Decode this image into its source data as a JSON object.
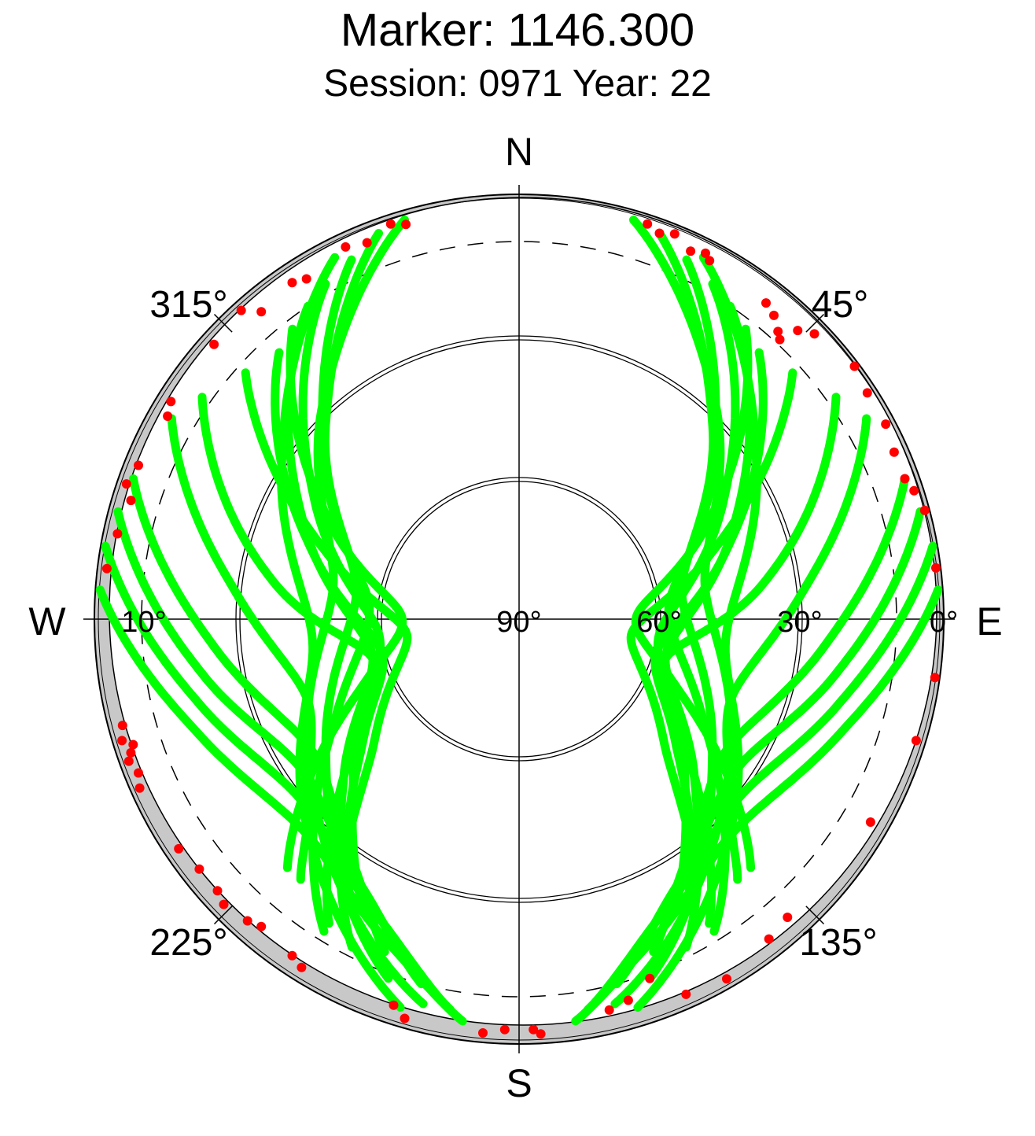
{
  "title": "Marker: 1146.300",
  "subtitle": "Session: 0971 Year: 22",
  "colors": {
    "track": "#00ff00",
    "flagged": "#ff0000",
    "mask": "#c8c8c8",
    "rings": "#000000"
  },
  "chart_data": {
    "type": "scatter",
    "projection": "polar skyplot (azimuth clockwise from north, elevation radial 0° at rim, 90° at center)",
    "title": "Marker: 1146.300",
    "subtitle": "Session: 0971 Year: 22",
    "cardinal_labels": [
      "N",
      "E",
      "S",
      "W"
    ],
    "azimuth_tick_labels": [
      "45°",
      "135°",
      "225°",
      "315°"
    ],
    "elevation_tick_labels": [
      "0°",
      "30°",
      "60°",
      "90°",
      "10°"
    ],
    "elevation_rings": [
      0,
      30,
      60
    ],
    "elevation_mask_deg": 10,
    "grid": true,
    "legend": "none",
    "series": [
      {
        "color": "green",
        "tracks": [
          {
            "az": [
              20,
              45,
              80,
              125,
              160
            ],
            "el": [
              3,
              32,
              55,
              40,
              9
            ]
          },
          {
            "az": [
              16,
              42,
              80,
              128,
              166
            ],
            "el": [
              2,
              28,
              50,
              34,
              6
            ]
          },
          {
            "az": [
              25,
              50,
              84,
              118,
              148
            ],
            "el": [
              6,
              36,
              58,
              46,
              12
            ]
          },
          {
            "az": [
              30,
              60,
              95,
              125,
              148
            ],
            "el": [
              8,
              40,
              60,
              48,
              14
            ]
          },
          {
            "az": [
              34,
              66,
              103,
              132,
              153
            ],
            "el": [
              10,
              40,
              58,
              40,
              12
            ]
          },
          {
            "az": [
              27,
              57,
              96,
              133,
              163
            ],
            "el": [
              4,
              30,
              46,
              28,
              4
            ]
          },
          {
            "az": [
              38,
              63,
              88,
              113,
              137
            ],
            "el": [
              12,
              45,
              65,
              54,
              18
            ]
          },
          {
            "az": [
              42,
              72,
              103,
              128,
              148
            ],
            "el": [
              14,
              44,
              60,
              48,
              22
            ]
          },
          {
            "az": [
              48,
              72,
              98,
              130,
              145
            ],
            "el": [
              12,
              48,
              66,
              50,
              25
            ]
          },
          {
            "az": [
              55,
              82,
              106,
              133,
              152
            ],
            "el": [
              8,
              38,
              58,
              42,
              20
            ]
          },
          {
            "az": [
              60,
              85,
              110,
              130,
              140
            ],
            "el": [
              5,
              30,
              42,
              32,
              18
            ]
          },
          {
            "az": [
              70,
              95,
              122,
              145,
              158
            ],
            "el": [
              3,
              25,
              38,
              28,
              14
            ]
          },
          {
            "az": [
              75,
              100,
              125,
              150,
              165
            ],
            "el": [
              2,
              22,
              34,
              24,
              10
            ]
          },
          {
            "az": [
              80,
              105,
              130,
              155,
              170
            ],
            "el": [
              1,
              20,
              30,
              20,
              6
            ]
          },
          {
            "az": [
              86,
              110,
              135,
              158,
              172
            ],
            "el": [
              1,
              18,
              26,
              16,
              4
            ]
          },
          {
            "az": [
              340,
              315,
              280,
              235,
              200
            ],
            "el": [
              3,
              32,
              55,
              40,
              9
            ]
          },
          {
            "az": [
              344,
              318,
              280,
              232,
              194
            ],
            "el": [
              2,
              28,
              50,
              34,
              6
            ]
          },
          {
            "az": [
              335,
              310,
              276,
              242,
              212
            ],
            "el": [
              6,
              36,
              58,
              46,
              12
            ]
          },
          {
            "az": [
              330,
              300,
              265,
              235,
              212
            ],
            "el": [
              8,
              40,
              60,
              48,
              14
            ]
          },
          {
            "az": [
              326,
              294,
              257,
              228,
              207
            ],
            "el": [
              10,
              40,
              58,
              40,
              12
            ]
          },
          {
            "az": [
              333,
              303,
              264,
              227,
              197
            ],
            "el": [
              4,
              30,
              46,
              28,
              4
            ]
          },
          {
            "az": [
              322,
              297,
              272,
              247,
              223
            ],
            "el": [
              12,
              45,
              65,
              54,
              18
            ]
          },
          {
            "az": [
              318,
              288,
              257,
              232,
              212
            ],
            "el": [
              14,
              44,
              60,
              48,
              22
            ]
          },
          {
            "az": [
              312,
              288,
              262,
              230,
              215
            ],
            "el": [
              12,
              48,
              66,
              50,
              25
            ]
          },
          {
            "az": [
              305,
              278,
              254,
              227,
              208
            ],
            "el": [
              8,
              38,
              58,
              42,
              20
            ]
          },
          {
            "az": [
              300,
              275,
              250,
              230,
              220
            ],
            "el": [
              5,
              30,
              42,
              32,
              18
            ]
          },
          {
            "az": [
              290,
              265,
              238,
              215,
              202
            ],
            "el": [
              3,
              25,
              38,
              28,
              14
            ]
          },
          {
            "az": [
              285,
              260,
              235,
              210,
              195
            ],
            "el": [
              2,
              22,
              34,
              24,
              10
            ]
          },
          {
            "az": [
              280,
              255,
              230,
              205,
              190
            ],
            "el": [
              1,
              20,
              30,
              20,
              6
            ]
          },
          {
            "az": [
              274,
              250,
              225,
              202,
              188
            ],
            "el": [
              1,
              18,
              26,
              16,
              4
            ]
          }
        ]
      },
      {
        "color": "red",
        "note": "observations below the elevation mask",
        "points": [
          {
            "az": 18,
            "el": 2
          },
          {
            "az": 20,
            "el": 3
          },
          {
            "az": 22,
            "el": 2
          },
          {
            "az": 25,
            "el": 4
          },
          {
            "az": 27,
            "el": 3
          },
          {
            "az": 28,
            "el": 4
          },
          {
            "az": 38,
            "el": 5
          },
          {
            "az": 40,
            "el": 6
          },
          {
            "az": 44,
            "el": 5
          },
          {
            "az": 46,
            "el": 3
          },
          {
            "az": 42,
            "el": 8
          },
          {
            "az": 43,
            "el": 9
          },
          {
            "az": 53,
            "el": 1
          },
          {
            "az": 57,
            "el": 2
          },
          {
            "az": 62,
            "el": 2
          },
          {
            "az": 66,
            "el": 3
          },
          {
            "az": 70,
            "el": 3
          },
          {
            "az": 72,
            "el": 2
          },
          {
            "az": 75,
            "el": 1
          },
          {
            "az": 83,
            "el": 1
          },
          {
            "az": 98,
            "el": 1
          },
          {
            "az": 107,
            "el": 2
          },
          {
            "az": 120,
            "el": 4
          },
          {
            "az": 138,
            "el": 5
          },
          {
            "az": 142,
            "el": 4
          },
          {
            "az": 150,
            "el": 2
          },
          {
            "az": 156,
            "el": 3
          },
          {
            "az": 160,
            "el": 9
          },
          {
            "az": 164,
            "el": 6
          },
          {
            "az": 167,
            "el": 5
          },
          {
            "az": 177,
            "el": 2
          },
          {
            "az": 178,
            "el": 3
          },
          {
            "az": 182,
            "el": 3
          },
          {
            "az": 185,
            "el": 2
          },
          {
            "az": 196,
            "el": 2
          },
          {
            "az": 198,
            "el": 4
          },
          {
            "az": 212,
            "el": 3
          },
          {
            "az": 214,
            "el": 4
          },
          {
            "az": 220,
            "el": 5
          },
          {
            "az": 222,
            "el": 4
          },
          {
            "az": 226,
            "el": 3
          },
          {
            "az": 228,
            "el": 4
          },
          {
            "az": 232,
            "el": 4
          },
          {
            "az": 236,
            "el": 3
          },
          {
            "az": 246,
            "el": 2
          },
          {
            "az": 248,
            "el": 3
          },
          {
            "az": 250,
            "el": 2
          },
          {
            "az": 251,
            "el": 3
          },
          {
            "az": 252,
            "el": 4
          },
          {
            "az": 253,
            "el": 2
          },
          {
            "az": 255,
            "el": 3
          },
          {
            "az": 277,
            "el": 2
          },
          {
            "az": 282,
            "el": 3
          },
          {
            "az": 287,
            "el": 4
          },
          {
            "az": 289,
            "el": 2
          },
          {
            "az": 292,
            "el": 3
          },
          {
            "az": 300,
            "el": 4
          },
          {
            "az": 302,
            "el": 3
          },
          {
            "az": 312,
            "el": 3
          },
          {
            "az": 318,
            "el": 2
          },
          {
            "az": 320,
            "el": 5
          },
          {
            "az": 326,
            "el": 4
          },
          {
            "az": 328,
            "el": 5
          },
          {
            "az": 335,
            "el": 3
          },
          {
            "az": 338,
            "el": 4
          },
          {
            "az": 342,
            "el": 2
          },
          {
            "az": 344,
            "el": 3
          }
        ]
      }
    ]
  }
}
